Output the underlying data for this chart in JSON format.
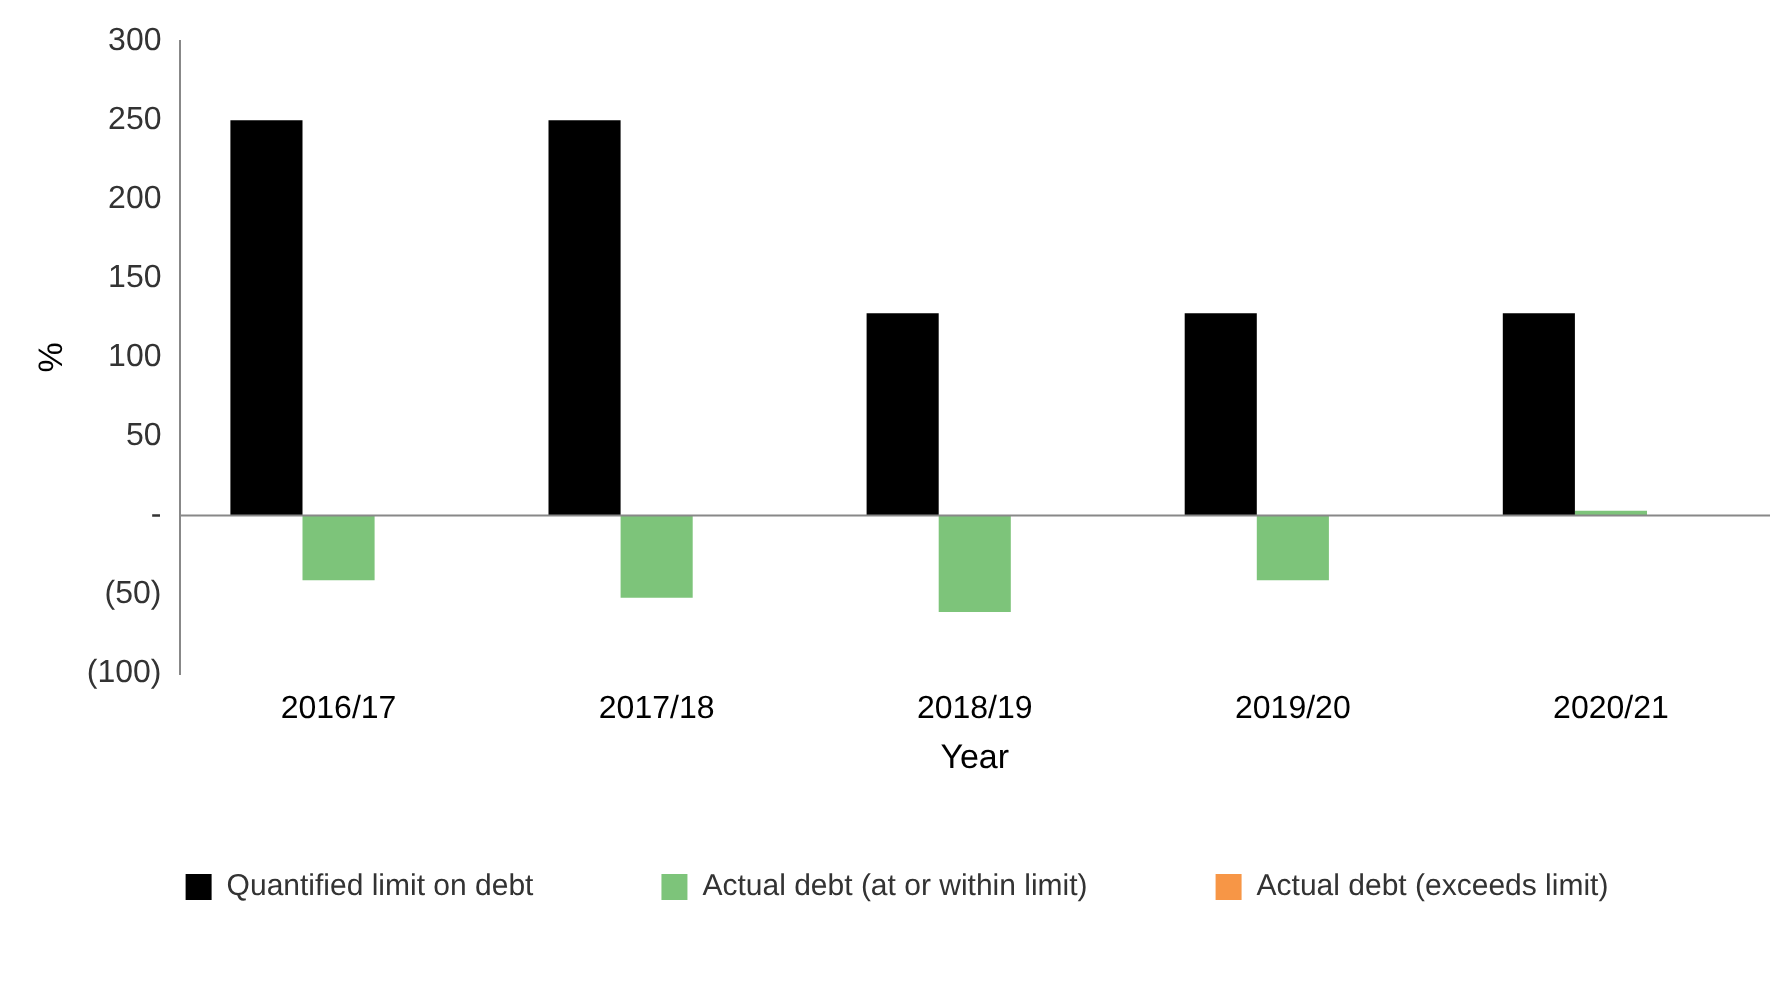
{
  "chart_data": {
    "type": "bar",
    "xlabel": "Year",
    "ylabel": "%",
    "categories": [
      "2016/17",
      "2017/18",
      "2018/19",
      "2019/20",
      "2020/21"
    ],
    "series": [
      {
        "name": "Quantified limit on debt",
        "color": "#000000",
        "values": [
          250,
          250,
          128,
          128,
          128
        ]
      },
      {
        "name": "Actual debt (at or within limit)",
        "color": "#7dc47a",
        "values": [
          -41,
          -52,
          -61,
          -41,
          3
        ]
      },
      {
        "name": "Actual debt (exceeds limit)",
        "color": "#f79646",
        "values": [
          null,
          null,
          null,
          null,
          null
        ]
      }
    ],
    "ylim": [
      -100,
      300
    ],
    "yticks": [
      {
        "value": -100,
        "label": "(100)"
      },
      {
        "value": -50,
        "label": "(50)"
      },
      {
        "value": 0,
        "label": "-"
      },
      50,
      100,
      150,
      200,
      250,
      300
    ],
    "ref_lines": [
      {
        "axis": "y",
        "value": 0,
        "color": "#888888"
      }
    ],
    "grid": false,
    "legend": "bottom"
  }
}
